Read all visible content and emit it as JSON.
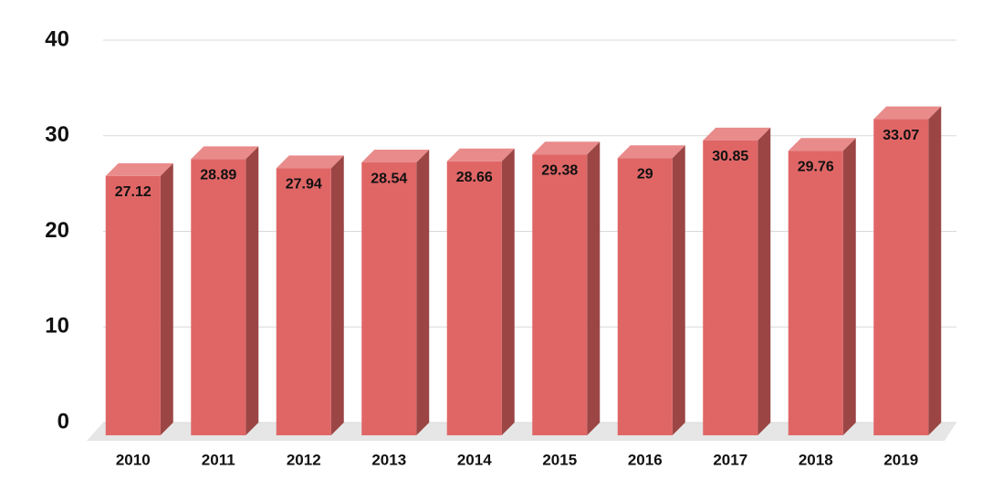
{
  "chart_data": {
    "type": "bar3d",
    "categories": [
      "2010",
      "2011",
      "2012",
      "2013",
      "2014",
      "2015",
      "2016",
      "2017",
      "2018",
      "2019"
    ],
    "values": [
      27.12,
      28.89,
      27.94,
      28.54,
      28.66,
      29.38,
      29,
      30.85,
      29.76,
      33.07
    ],
    "color": "#e06666",
    "ylim": [
      0,
      40
    ],
    "yticks": [
      0,
      10,
      20,
      30,
      40
    ],
    "grid": true
  }
}
